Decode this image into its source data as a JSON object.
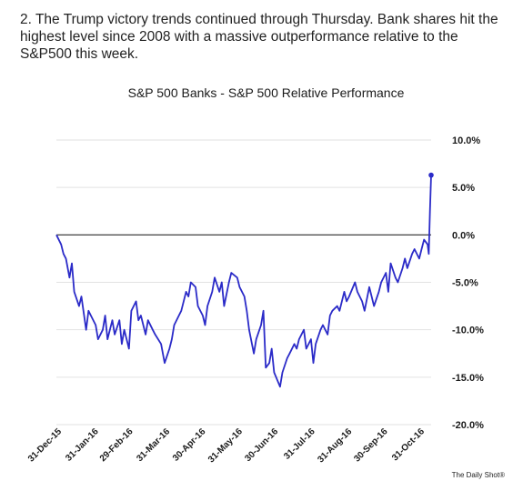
{
  "intro_text": "2. The Trump victory trends continued through Thursday. Bank shares hit the highest level since 2008 with a massive outperformance relative to the S&P500 this week.",
  "credit": "The Daily Shot®",
  "colors": {
    "line": "#2b2bc8",
    "grid": "#e2e2e2",
    "zero_line": "#2a2a2a",
    "text": "#1a1a1a"
  },
  "chart_data": {
    "type": "line",
    "title": "S&P 500 Banks - S&P 500  Relative Performance",
    "xlabel": "",
    "ylabel": "",
    "y_unit": "%",
    "ylim": [
      -20,
      10
    ],
    "yticks": [
      10,
      5,
      0,
      -5,
      -10,
      -15,
      -20
    ],
    "ytick_labels": [
      "10.0%",
      "5.0%",
      "0.0%",
      "-5.0%",
      "-10.0%",
      "-15.0%",
      "-20.0%"
    ],
    "y_axis_side": "right",
    "grid": "horizontal",
    "xlim": [
      "2015-12-31",
      "2016-11-10"
    ],
    "xtick_labels": [
      "31-Dec-15",
      "31-Jan-16",
      "29-Feb-16",
      "31-Mar-16",
      "30-Apr-16",
      "31-May-16",
      "30-Jun-16",
      "31-Jul-16",
      "31-Aug-16",
      "30-Sep-16",
      "31-Oct-16"
    ],
    "xtick_dates": [
      "2015-12-31",
      "2016-01-31",
      "2016-02-29",
      "2016-03-31",
      "2016-04-30",
      "2016-05-31",
      "2016-06-30",
      "2016-07-31",
      "2016-08-31",
      "2016-09-30",
      "2016-10-31"
    ],
    "series": [
      {
        "x": [
          "2015-12-31",
          "2016-01-04",
          "2016-01-06",
          "2016-01-08",
          "2016-01-11",
          "2016-01-13",
          "2016-01-15",
          "2016-01-19",
          "2016-01-21",
          "2016-01-25",
          "2016-01-27",
          "2016-01-29",
          "2016-02-02",
          "2016-02-04",
          "2016-02-08",
          "2016-02-10",
          "2016-02-12",
          "2016-02-16",
          "2016-02-18",
          "2016-02-22",
          "2016-02-24",
          "2016-02-26",
          "2016-03-01",
          "2016-03-03",
          "2016-03-07",
          "2016-03-09",
          "2016-03-11",
          "2016-03-15",
          "2016-03-17",
          "2016-03-21",
          "2016-03-23",
          "2016-03-28",
          "2016-03-31",
          "2016-04-04",
          "2016-04-06",
          "2016-04-08",
          "2016-04-12",
          "2016-04-14",
          "2016-04-18",
          "2016-04-20",
          "2016-04-22",
          "2016-04-26",
          "2016-04-28",
          "2016-05-02",
          "2016-05-04",
          "2016-05-06",
          "2016-05-10",
          "2016-05-12",
          "2016-05-16",
          "2016-05-18",
          "2016-05-20",
          "2016-05-24",
          "2016-05-26",
          "2016-05-31",
          "2016-06-02",
          "2016-06-06",
          "2016-06-08",
          "2016-06-10",
          "2016-06-14",
          "2016-06-16",
          "2016-06-20",
          "2016-06-22",
          "2016-06-24",
          "2016-06-27",
          "2016-06-29",
          "2016-07-01",
          "2016-07-06",
          "2016-07-08",
          "2016-07-12",
          "2016-07-14",
          "2016-07-18",
          "2016-07-20",
          "2016-07-22",
          "2016-07-26",
          "2016-07-28",
          "2016-08-01",
          "2016-08-03",
          "2016-08-05",
          "2016-08-09",
          "2016-08-11",
          "2016-08-15",
          "2016-08-17",
          "2016-08-19",
          "2016-08-23",
          "2016-08-25",
          "2016-08-29",
          "2016-08-31",
          "2016-09-02",
          "2016-09-07",
          "2016-09-09",
          "2016-09-13",
          "2016-09-15",
          "2016-09-19",
          "2016-09-21",
          "2016-09-23",
          "2016-09-27",
          "2016-09-29",
          "2016-10-03",
          "2016-10-05",
          "2016-10-07",
          "2016-10-11",
          "2016-10-13",
          "2016-10-17",
          "2016-10-19",
          "2016-10-21",
          "2016-10-25",
          "2016-10-27",
          "2016-10-31",
          "2016-11-02",
          "2016-11-04",
          "2016-11-07",
          "2016-11-08",
          "2016-11-09",
          "2016-11-10"
        ],
        "y": [
          0.0,
          -1.0,
          -2.0,
          -2.5,
          -4.5,
          -3.0,
          -6.0,
          -7.5,
          -6.5,
          -10.0,
          -8.0,
          -8.5,
          -9.5,
          -11.0,
          -10.0,
          -8.5,
          -11.0,
          -9.0,
          -10.5,
          -9.0,
          -11.5,
          -10.0,
          -12.0,
          -8.0,
          -7.0,
          -9.0,
          -8.5,
          -10.5,
          -9.0,
          -10.0,
          -10.5,
          -11.5,
          -13.5,
          -12.0,
          -11.0,
          -9.5,
          -8.5,
          -8.0,
          -6.0,
          -6.5,
          -5.0,
          -5.5,
          -7.5,
          -8.5,
          -9.5,
          -7.5,
          -6.0,
          -4.5,
          -6.0,
          -5.0,
          -7.5,
          -5.0,
          -4.0,
          -4.5,
          -5.5,
          -6.5,
          -8.0,
          -10.0,
          -12.5,
          -11.0,
          -9.5,
          -8.0,
          -14.0,
          -13.5,
          -12.0,
          -14.5,
          -16.0,
          -14.5,
          -13.0,
          -12.5,
          -11.5,
          -12.0,
          -11.0,
          -10.0,
          -12.0,
          -11.0,
          -13.5,
          -11.5,
          -10.0,
          -9.5,
          -10.5,
          -8.5,
          -8.0,
          -7.5,
          -8.0,
          -6.0,
          -7.0,
          -6.5,
          -5.0,
          -6.0,
          -7.0,
          -8.0,
          -5.5,
          -6.5,
          -7.5,
          -6.0,
          -5.0,
          -4.0,
          -6.0,
          -3.0,
          -4.5,
          -5.0,
          -3.5,
          -2.5,
          -3.5,
          -2.0,
          -1.5,
          -2.5,
          -1.5,
          -0.5,
          -1.0,
          -2.0,
          2.5,
          6.3
        ]
      }
    ]
  }
}
